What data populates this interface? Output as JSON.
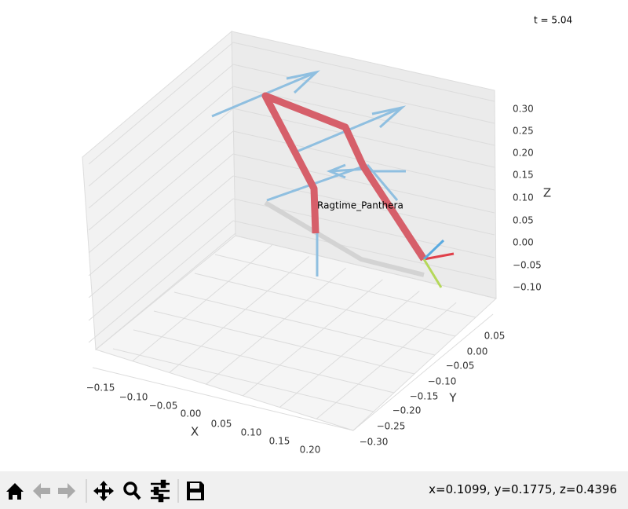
{
  "plot": {
    "time_text": "t = 5.04",
    "label": "Ragtime_Panthera",
    "x_axis": {
      "label": "X",
      "ticks": [
        "−0.15",
        "−0.10",
        "−0.05",
        "0.00",
        "0.05",
        "0.10",
        "0.15",
        "0.20"
      ]
    },
    "y_axis": {
      "label": "Y",
      "ticks": [
        "0.05",
        "0.00",
        "−0.05",
        "−0.10",
        "−0.15",
        "−0.20",
        "−0.25",
        "−0.30"
      ]
    },
    "z_axis": {
      "label": "Z",
      "ticks": [
        "0.30",
        "0.25",
        "0.20",
        "0.15",
        "0.10",
        "0.05",
        "0.00",
        "−0.05",
        "−0.10"
      ]
    }
  },
  "toolbar": {
    "status": "x=0.1099, y=0.1775, z=0.4396"
  }
}
